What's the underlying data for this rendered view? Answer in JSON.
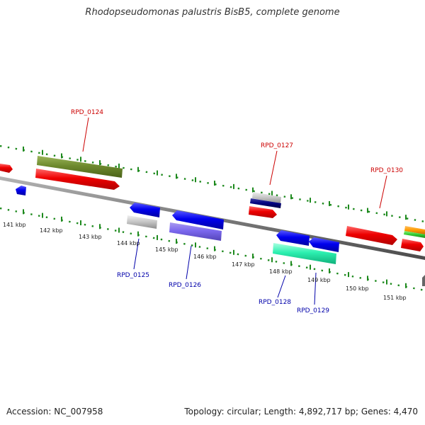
{
  "title": "Rhodopseudomonas palustris BisB5, complete genome",
  "footer": {
    "accession": "Accession: NC_007958",
    "summary": "Topology: circular; Length: 4,892,717 bp; Genes: 4,470"
  },
  "colors": {
    "backbone": "#7a7a7a",
    "ticks": "#1e8a1e",
    "label_top": "#cc0000",
    "label_bottom": "#0000aa"
  },
  "scale": {
    "ticks": [
      {
        "label": "141 kbp"
      },
      {
        "label": "142 kbp"
      },
      {
        "label": "143 kbp"
      },
      {
        "label": "144 kbp"
      },
      {
        "label": "145 kbp"
      },
      {
        "label": "146 kbp"
      },
      {
        "label": "147 kbp"
      },
      {
        "label": "148 kbp"
      },
      {
        "label": "149 kbp"
      },
      {
        "label": "150 kbp"
      },
      {
        "label": "151 kbp"
      }
    ]
  },
  "gene_labels": [
    {
      "label": "RPD_0124",
      "strand": "top"
    },
    {
      "label": "RPD_0127",
      "strand": "top"
    },
    {
      "label": "RPD_0130",
      "strand": "top"
    },
    {
      "label": "RPD_0125",
      "strand": "bottom"
    },
    {
      "label": "RPD_0126",
      "strand": "bottom"
    },
    {
      "label": "RPD_0128",
      "strand": "bottom"
    },
    {
      "label": "RPD_0129",
      "strand": "bottom"
    }
  ]
}
